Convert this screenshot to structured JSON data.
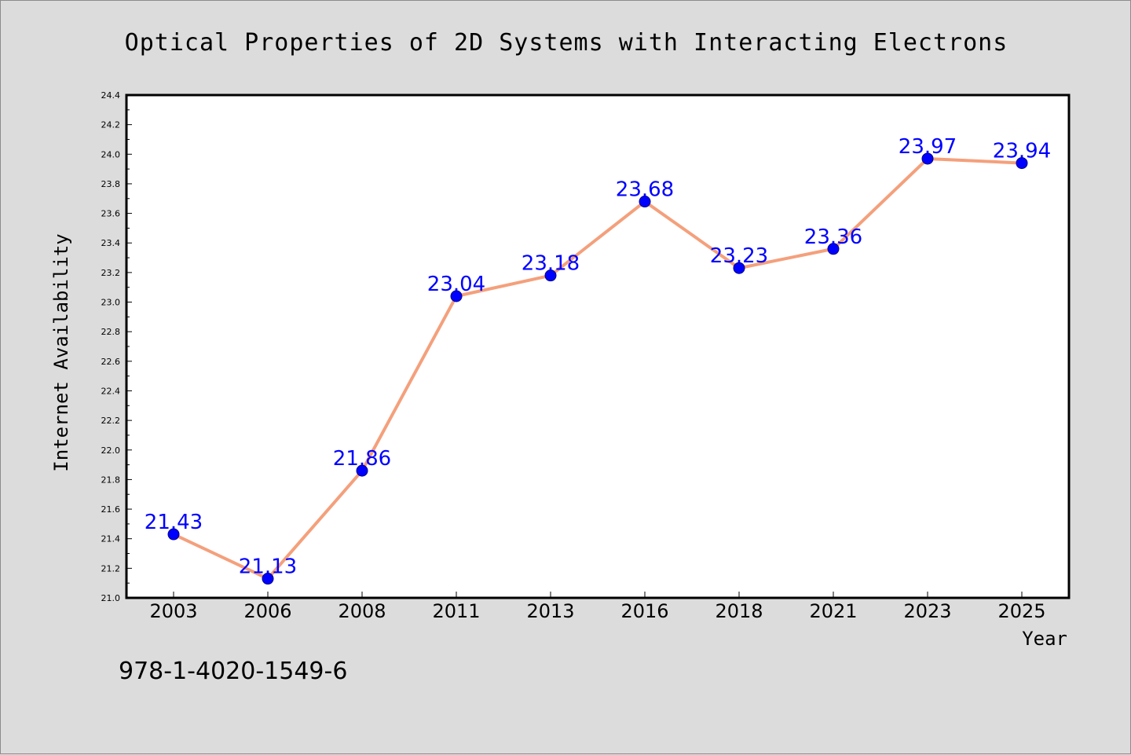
{
  "chart_data": {
    "type": "line",
    "title": "Optical Properties of 2D Systems with Interacting Electrons",
    "xlabel": "Year",
    "ylabel": "Internet Availability",
    "categories": [
      "2003",
      "2006",
      "2008",
      "2011",
      "2013",
      "2016",
      "2018",
      "2021",
      "2023",
      "2025"
    ],
    "series": [
      {
        "values": [
          21.43,
          21.13,
          21.86,
          23.04,
          23.18,
          23.68,
          23.23,
          23.36,
          23.97,
          23.94
        ]
      }
    ],
    "data_labels": [
      "21.43",
      "21.13",
      "21.86",
      "23.04",
      "23.18",
      "23.68",
      "23.23",
      "23.36",
      "23.97",
      "23.94"
    ],
    "ylim": [
      21.0,
      24.4
    ],
    "yticks": [
      "21.0",
      "21.2",
      "21.4",
      "21.6",
      "21.8",
      "22.0",
      "22.2",
      "22.4",
      "22.6",
      "22.8",
      "23.0",
      "23.2",
      "23.4",
      "23.6",
      "23.8",
      "24.0",
      "24.2",
      "24.4"
    ],
    "grid": false,
    "legend": "none",
    "colors": {
      "line": "#f4a07c",
      "marker": "#0000ff",
      "data_label": "#0000ff",
      "plot_background": "#ffffff",
      "figure_background": "#dcdcdc"
    }
  },
  "footer": {
    "isbn": "978-1-4020-1549-6"
  }
}
